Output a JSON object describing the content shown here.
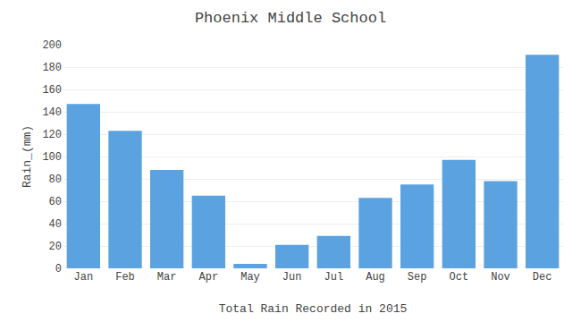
{
  "chart_data": {
    "type": "bar",
    "title": "Phoenix Middle School",
    "xlabel": "Total Rain Recorded in 2015",
    "ylabel": "Rain_(mm)",
    "categories": [
      "Jan",
      "Feb",
      "Mar",
      "Apr",
      "May",
      "Jun",
      "Jul",
      "Aug",
      "Sep",
      "Oct",
      "Nov",
      "Dec"
    ],
    "values": [
      147,
      123,
      88,
      65,
      4,
      21,
      29,
      63,
      75,
      97,
      78,
      191
    ],
    "color": "#5ba3e0",
    "ylim": [
      0,
      200
    ],
    "yticks": [
      0,
      20,
      40,
      60,
      80,
      100,
      120,
      140,
      160,
      180,
      200
    ],
    "grid": true
  }
}
